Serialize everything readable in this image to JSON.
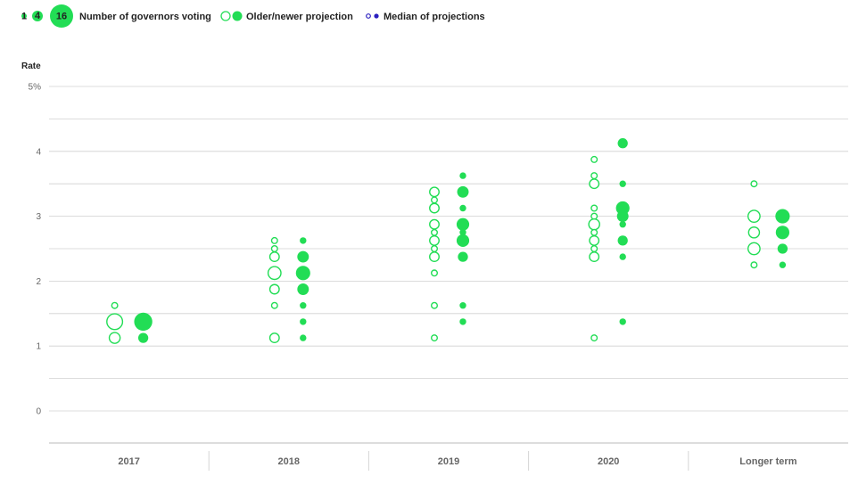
{
  "colors": {
    "accent": "#22dd55",
    "median": "#2a1fbf",
    "grid": "#d0d0d0",
    "text": "#666666"
  },
  "legend": {
    "size_samples": [
      "1",
      "4",
      "16"
    ],
    "size_label": "Number of governors voting",
    "projection_label": "Older/newer projection",
    "median_label": "Median of projections"
  },
  "chart_data": {
    "type": "scatter",
    "ylabel": "Rate",
    "ylim": [
      0,
      5
    ],
    "yticks": [
      {
        "value": 5,
        "label": "5%"
      },
      {
        "value": 4,
        "label": "4"
      },
      {
        "value": 3,
        "label": "3"
      },
      {
        "value": 2,
        "label": "2"
      },
      {
        "value": 1,
        "label": "1"
      },
      {
        "value": 0,
        "label": "0"
      }
    ],
    "categories": [
      "2017",
      "2018",
      "2019",
      "2020",
      "Longer term"
    ],
    "grid": true,
    "legend_position": "top-left",
    "older": [
      [
        [
          1.625,
          1
        ],
        [
          1.375,
          9
        ],
        [
          1.125,
          3
        ]
      ],
      [
        [
          2.625,
          1
        ],
        [
          2.5,
          1
        ],
        [
          2.375,
          2
        ],
        [
          2.125,
          5
        ],
        [
          1.875,
          2
        ],
        [
          1.625,
          1
        ],
        [
          1.125,
          2
        ]
      ],
      [
        [
          3.375,
          2
        ],
        [
          3.25,
          1
        ],
        [
          3.125,
          2
        ],
        [
          2.875,
          2
        ],
        [
          2.75,
          1
        ],
        [
          2.625,
          2
        ],
        [
          2.5,
          1
        ],
        [
          2.375,
          2
        ],
        [
          2.125,
          1
        ],
        [
          1.625,
          1
        ],
        [
          1.125,
          1
        ]
      ],
      [
        [
          3.875,
          1
        ],
        [
          3.625,
          1
        ],
        [
          3.5,
          2
        ],
        [
          3.125,
          1
        ],
        [
          3.0,
          1
        ],
        [
          2.875,
          3
        ],
        [
          2.75,
          1
        ],
        [
          2.625,
          2
        ],
        [
          2.5,
          1
        ],
        [
          2.375,
          2
        ],
        [
          1.125,
          1
        ]
      ],
      [
        [
          3.5,
          1
        ],
        [
          3.0,
          4
        ],
        [
          2.75,
          3
        ],
        [
          2.5,
          4
        ],
        [
          2.25,
          1
        ]
      ]
    ],
    "newer": [
      [
        [
          1.375,
          12
        ],
        [
          1.125,
          2
        ]
      ],
      [
        [
          2.625,
          1
        ],
        [
          2.375,
          3
        ],
        [
          2.125,
          6
        ],
        [
          1.875,
          3
        ],
        [
          1.625,
          1
        ],
        [
          1.375,
          1
        ],
        [
          1.125,
          1
        ]
      ],
      [
        [
          3.625,
          1
        ],
        [
          3.375,
          3
        ],
        [
          3.125,
          1
        ],
        [
          2.875,
          4
        ],
        [
          2.75,
          1
        ],
        [
          2.625,
          4
        ],
        [
          2.375,
          2
        ],
        [
          1.625,
          1
        ],
        [
          1.375,
          1
        ]
      ],
      [
        [
          4.125,
          2
        ],
        [
          3.5,
          1
        ],
        [
          3.125,
          5
        ],
        [
          3.0,
          3
        ],
        [
          2.875,
          1
        ],
        [
          2.625,
          2
        ],
        [
          2.375,
          1
        ],
        [
          1.375,
          1
        ]
      ],
      [
        [
          3.0,
          6
        ],
        [
          2.75,
          5
        ],
        [
          2.5,
          2
        ],
        [
          2.25,
          1
        ]
      ]
    ]
  }
}
